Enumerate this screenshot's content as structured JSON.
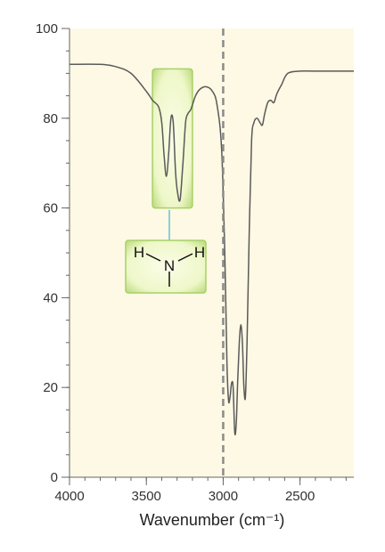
{
  "chart_data": {
    "type": "line",
    "xlabel": "Wavenumber (cm⁻¹)",
    "x_axis": {
      "range": [
        4000,
        2150
      ],
      "reversed": true,
      "ticks": [
        4000,
        3500,
        3000,
        2500
      ],
      "minor_step": 100
    },
    "y_axis": {
      "range": [
        0,
        100
      ],
      "ticks": [
        0,
        20,
        40,
        60,
        80,
        100
      ],
      "minor_step": 5
    },
    "grid": false,
    "reference_line": {
      "x": 3000,
      "style": "dashed"
    },
    "series": [
      {
        "x": [
          4000,
          3800,
          3700,
          3600,
          3500,
          3460,
          3420,
          3400,
          3385,
          3370,
          3355,
          3340,
          3325,
          3310,
          3295,
          3280,
          3262,
          3245,
          3230,
          3210,
          3180,
          3150,
          3110,
          3070,
          3040,
          3010,
          2990,
          2975,
          2965,
          2955,
          2945,
          2935,
          2925,
          2915,
          2905,
          2895,
          2885,
          2875,
          2865,
          2855,
          2845,
          2830,
          2815,
          2800,
          2780,
          2760,
          2745,
          2730,
          2710,
          2690,
          2670,
          2650,
          2620,
          2580,
          2500,
          2400,
          2150
        ],
        "y": [
          92,
          92,
          91.5,
          90,
          86,
          84,
          82.5,
          79,
          72,
          67,
          72,
          80,
          79,
          68,
          63,
          62,
          70,
          79,
          81,
          82,
          85,
          86.5,
          87,
          86,
          83,
          73,
          50,
          25,
          17,
          18,
          21,
          20,
          10,
          12,
          22,
          30,
          34,
          30,
          20,
          18,
          30,
          55,
          75,
          79,
          80,
          79,
          78.5,
          81,
          83.5,
          84,
          83.5,
          85.5,
          87.5,
          90,
          90.5,
          90.5,
          90.5
        ]
      }
    ],
    "annotation": {
      "label": "NH₂",
      "atoms": [
        "H",
        "N",
        "H"
      ],
      "highlight_x_range": [
        3460,
        3200
      ],
      "highlight_y_range": [
        60,
        91
      ]
    }
  }
}
